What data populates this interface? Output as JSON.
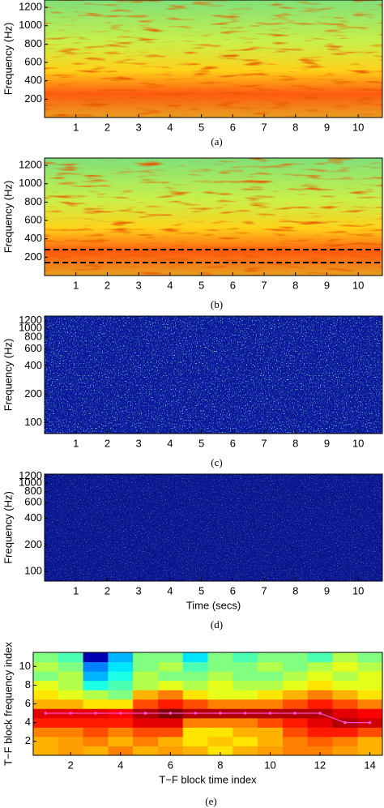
{
  "chart_data": [
    {
      "type": "spectrogram",
      "caption": "(a)",
      "ylabel": "Frequency (Hz)",
      "palette": "warm",
      "xlim": [
        0,
        10.77
      ],
      "xticks": [
        1,
        2,
        3,
        4,
        5,
        6,
        7,
        8,
        9,
        10
      ],
      "ylim": [
        0,
        1280
      ],
      "yticks": [
        200,
        400,
        600,
        800,
        1000,
        1200
      ]
    },
    {
      "type": "spectrogram",
      "caption": "(b)",
      "ylabel": "Frequency (Hz)",
      "palette": "warm",
      "xlim": [
        0,
        10.77
      ],
      "xticks": [
        1,
        2,
        3,
        4,
        5,
        6,
        7,
        8,
        9,
        10
      ],
      "ylim": [
        0,
        1280
      ],
      "yticks": [
        200,
        400,
        600,
        800,
        1000,
        1200
      ]
    },
    {
      "type": "spectrogram",
      "caption": "(c)",
      "ylabel": "Frequency (Hz)",
      "palette": "dark",
      "yscale": "log",
      "xlim": [
        0,
        10.77
      ],
      "xticks": [
        1,
        2,
        3,
        4,
        5,
        6,
        7,
        8,
        9,
        10
      ],
      "ylim": [
        77,
        1340
      ],
      "yticks": [
        100,
        200,
        400,
        600,
        800,
        1000,
        1200
      ]
    },
    {
      "type": "spectrogram",
      "caption": "(d)",
      "ylabel": "Frequency (Hz)",
      "xlabel": "Time (secs)",
      "palette": "darker",
      "yscale": "log",
      "xlim": [
        0,
        10.77
      ],
      "xticks": [
        1,
        2,
        3,
        4,
        5,
        6,
        7,
        8,
        9,
        10
      ],
      "ylim": [
        78,
        1262
      ],
      "yticks": [
        100,
        200,
        400,
        600,
        800,
        1000,
        1200
      ]
    },
    {
      "type": "heatmap",
      "caption": "(e)",
      "xlabel": "T−F block time index",
      "ylabel": "T−F block frequency index",
      "xlim": [
        0.5,
        14.5
      ],
      "xticks": [
        2,
        4,
        6,
        8,
        10,
        12,
        14
      ],
      "ylim": [
        0.5,
        11.5
      ],
      "yticks": [
        2,
        4,
        6,
        8,
        10
      ],
      "x": [
        1,
        2,
        3,
        4,
        5,
        6,
        7,
        8,
        9,
        10,
        11,
        12,
        13,
        14
      ],
      "y": [
        1,
        2,
        3,
        4,
        5,
        6,
        7,
        8,
        9,
        10,
        11
      ],
      "z": [
        [
          0.7,
          0.72,
          0.7,
          0.75,
          0.7,
          0.72,
          0.7,
          0.65,
          0.7,
          0.72,
          0.75,
          0.75,
          0.72,
          0.7
        ],
        [
          0.7,
          0.72,
          0.75,
          0.7,
          0.75,
          0.7,
          0.65,
          0.68,
          0.65,
          0.7,
          0.75,
          0.78,
          0.75,
          0.7
        ],
        [
          0.75,
          0.75,
          0.8,
          0.75,
          0.8,
          0.8,
          0.65,
          0.65,
          0.7,
          0.7,
          0.8,
          0.85,
          0.85,
          0.8
        ],
        [
          0.85,
          0.85,
          0.85,
          0.85,
          0.9,
          0.9,
          0.75,
          0.75,
          0.75,
          0.8,
          0.85,
          0.9,
          0.95,
          0.92
        ],
        [
          0.9,
          0.9,
          0.9,
          0.88,
          0.95,
          1,
          0.95,
          0.95,
          0.95,
          0.95,
          0.95,
          0.95,
          0.9,
          0.88
        ],
        [
          0.7,
          0.7,
          0.65,
          0.65,
          0.8,
          0.85,
          0.8,
          0.75,
          0.75,
          0.75,
          0.8,
          0.85,
          0.8,
          0.75
        ],
        [
          0.65,
          0.6,
          0.55,
          0.5,
          0.7,
          0.75,
          0.65,
          0.6,
          0.6,
          0.65,
          0.7,
          0.75,
          0.7,
          0.65
        ],
        [
          0.6,
          0.55,
          0.4,
          0.45,
          0.55,
          0.6,
          0.55,
          0.6,
          0.55,
          0.55,
          0.6,
          0.65,
          0.6,
          0.6
        ],
        [
          0.5,
          0.55,
          0.3,
          0.4,
          0.55,
          0.5,
          0.5,
          0.55,
          0.5,
          0.5,
          0.55,
          0.6,
          0.55,
          0.6
        ],
        [
          0.55,
          0.5,
          0.25,
          0.35,
          0.5,
          0.55,
          0.45,
          0.5,
          0.5,
          0.55,
          0.5,
          0.55,
          0.6,
          0.55
        ],
        [
          0.5,
          0.45,
          0.05,
          0.3,
          0.5,
          0.5,
          0.35,
          0.5,
          0.45,
          0.5,
          0.5,
          0.45,
          0.55,
          0.5
        ]
      ],
      "series": [
        {
          "color": "#ff4fd8",
          "values": [
            5,
            5,
            5,
            5,
            5,
            5,
            5,
            5,
            5,
            5,
            5,
            5,
            4,
            4
          ]
        }
      ]
    }
  ]
}
